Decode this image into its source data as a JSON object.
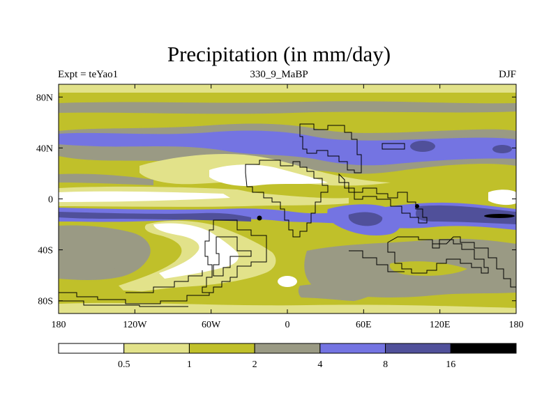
{
  "title": "Precipitation (in mm/day)",
  "left_label": "Expt = teYao1",
  "center_label": "330_9_MaBP",
  "right_label": "DJF",
  "axes": {
    "lat_ticks": [
      "80N",
      "40N",
      "0",
      "40S",
      "80S"
    ],
    "lon_ticks": [
      "180",
      "120W",
      "60W",
      "0",
      "60E",
      "120E",
      "180"
    ]
  },
  "colorbar": {
    "levels": [
      "0.5",
      "1",
      "2",
      "4",
      "8",
      "16"
    ],
    "colors": [
      "#ffffff",
      "#e2e28a",
      "#c0c02a",
      "#9a9a84",
      "#7474e2",
      "#50509a",
      "#000000"
    ]
  }
}
